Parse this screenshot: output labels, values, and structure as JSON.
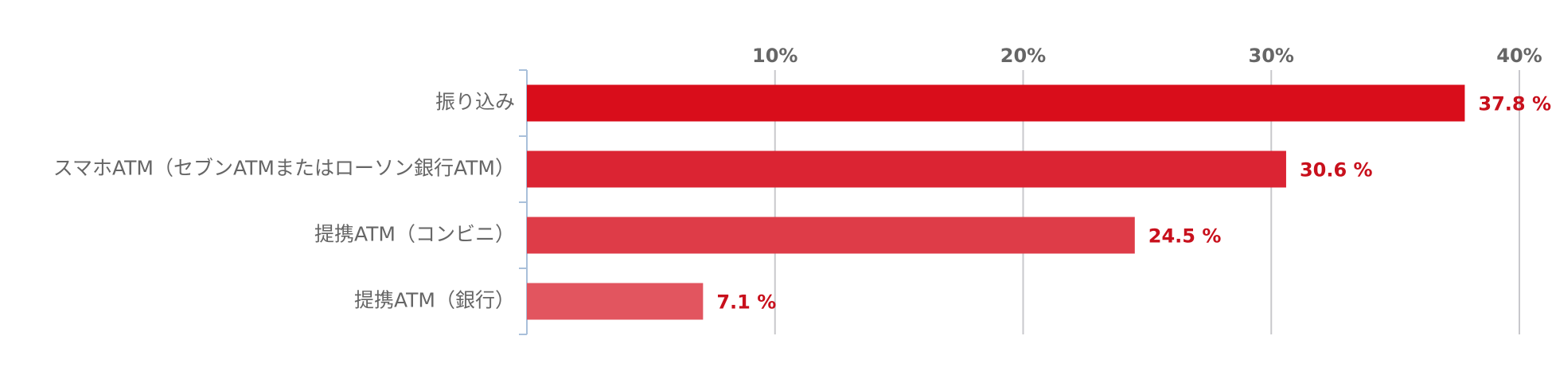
{
  "chart_data": {
    "type": "hbar",
    "categories": [
      "振り込み",
      "スマホATM（セブンATMまたはローソン銀行ATM）",
      "提携ATM（コンビニ）",
      "提携ATM（銀行）"
    ],
    "values": [
      37.8,
      30.6,
      24.5,
      7.1
    ],
    "value_labels": [
      "37.8 %",
      "30.6 %",
      "24.5 %",
      "7.1 %"
    ],
    "colors": [
      "#d90d1b",
      "#db2433",
      "#de3c48",
      "#e2555f"
    ],
    "xlim": [
      0,
      40
    ],
    "xticks": [
      {
        "value": 10,
        "label": "10%"
      },
      {
        "value": 20,
        "label": "20%"
      },
      {
        "value": 30,
        "label": "30%"
      },
      {
        "value": 40,
        "label": "40%"
      }
    ],
    "grid": true
  }
}
